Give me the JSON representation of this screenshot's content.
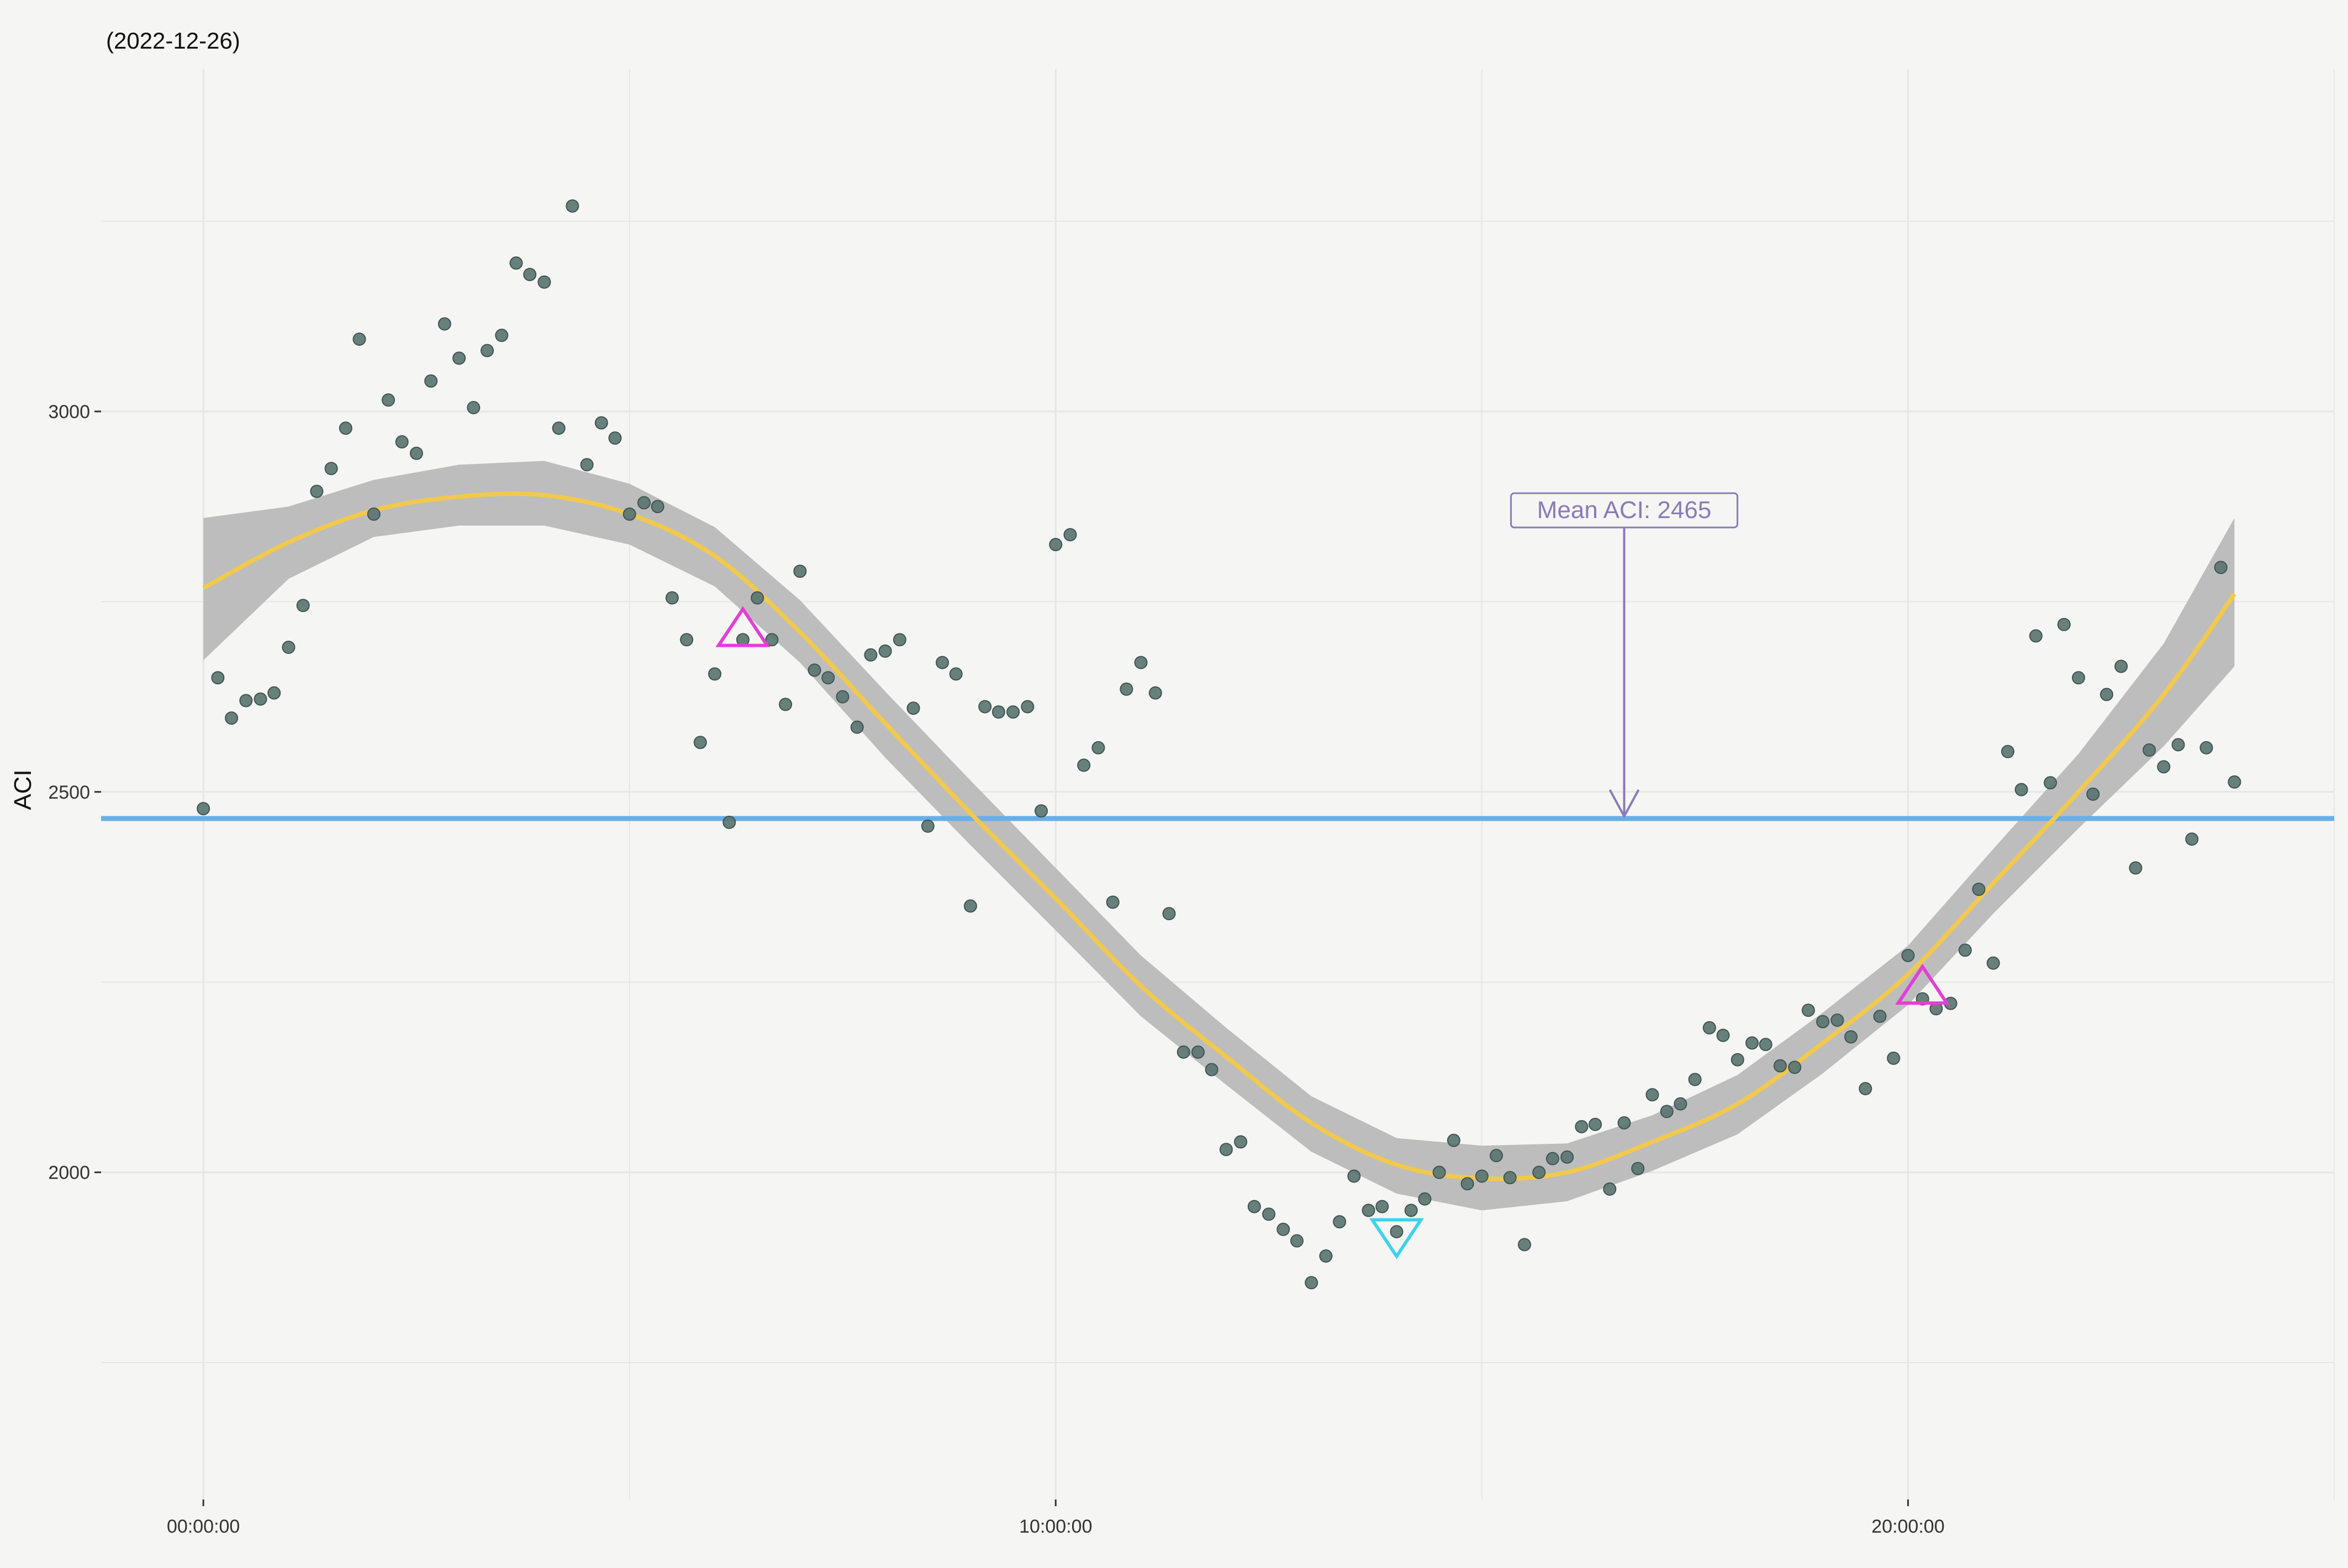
{
  "chart_data": {
    "type": "scatter",
    "title": "(2022-12-26)",
    "xlabel": "",
    "ylabel": "ACI",
    "x_unit": "hours",
    "x_ticks": [
      {
        "value": 0,
        "label": "00:00:00"
      },
      {
        "value": 10,
        "label": "10:00:00"
      },
      {
        "value": 20,
        "label": "20:00:00"
      }
    ],
    "y_ticks": [
      {
        "value": 2000,
        "label": "2000"
      },
      {
        "value": 2500,
        "label": "2500"
      },
      {
        "value": 3000,
        "label": "3000"
      }
    ],
    "xlim": [
      -1.2,
      25.0
    ],
    "ylim": [
      1570,
      3450
    ],
    "grid": true,
    "colors": {
      "points": "#5b7572",
      "smooth_line": "#f2c94c",
      "ribbon": "#bdbdbd",
      "mean_line": "#6aaee8",
      "annotation": "#8a7bb5",
      "peak_marker": "#e23fd6",
      "trough_marker": "#3fd3ea",
      "background": "#f5f5f3",
      "gridline": "#e6e6e3"
    },
    "mean": {
      "value": 2465,
      "label": "Mean ACI:  2465",
      "arrow_x": 16.67,
      "label_y": 2870
    },
    "markers": [
      {
        "type": "peak",
        "x": 6.33,
        "y": 2710
      },
      {
        "type": "trough",
        "x": 14.0,
        "y": 1920
      },
      {
        "type": "peak",
        "x": 20.17,
        "y": 2240
      }
    ],
    "points": [
      {
        "x": 0.0,
        "y": 2478
      },
      {
        "x": 0.17,
        "y": 2650
      },
      {
        "x": 0.33,
        "y": 2597
      },
      {
        "x": 0.5,
        "y": 2620
      },
      {
        "x": 0.67,
        "y": 2622
      },
      {
        "x": 0.83,
        "y": 2630
      },
      {
        "x": 1.0,
        "y": 2690
      },
      {
        "x": 1.17,
        "y": 2745
      },
      {
        "x": 1.33,
        "y": 2895
      },
      {
        "x": 1.5,
        "y": 2925
      },
      {
        "x": 1.67,
        "y": 2978
      },
      {
        "x": 1.83,
        "y": 3095
      },
      {
        "x": 2.0,
        "y": 2865
      },
      {
        "x": 2.17,
        "y": 3015
      },
      {
        "x": 2.33,
        "y": 2960
      },
      {
        "x": 2.5,
        "y": 2945
      },
      {
        "x": 2.67,
        "y": 3040
      },
      {
        "x": 2.83,
        "y": 3115
      },
      {
        "x": 3.0,
        "y": 3070
      },
      {
        "x": 3.17,
        "y": 3005
      },
      {
        "x": 3.33,
        "y": 3080
      },
      {
        "x": 3.5,
        "y": 3100
      },
      {
        "x": 3.67,
        "y": 3195
      },
      {
        "x": 3.83,
        "y": 3180
      },
      {
        "x": 4.0,
        "y": 3170
      },
      {
        "x": 4.17,
        "y": 2978
      },
      {
        "x": 4.33,
        "y": 3270
      },
      {
        "x": 4.5,
        "y": 2930
      },
      {
        "x": 4.67,
        "y": 2985
      },
      {
        "x": 4.83,
        "y": 2965
      },
      {
        "x": 5.0,
        "y": 2865
      },
      {
        "x": 5.17,
        "y": 2880
      },
      {
        "x": 5.33,
        "y": 2875
      },
      {
        "x": 5.5,
        "y": 2755
      },
      {
        "x": 5.67,
        "y": 2700
      },
      {
        "x": 5.83,
        "y": 2565
      },
      {
        "x": 6.0,
        "y": 2655
      },
      {
        "x": 6.17,
        "y": 2460
      },
      {
        "x": 6.33,
        "y": 2700
      },
      {
        "x": 6.5,
        "y": 2755
      },
      {
        "x": 6.67,
        "y": 2700
      },
      {
        "x": 6.83,
        "y": 2615
      },
      {
        "x": 7.0,
        "y": 2790
      },
      {
        "x": 7.17,
        "y": 2660
      },
      {
        "x": 7.33,
        "y": 2650
      },
      {
        "x": 7.5,
        "y": 2625
      },
      {
        "x": 7.67,
        "y": 2585
      },
      {
        "x": 7.83,
        "y": 2680
      },
      {
        "x": 8.0,
        "y": 2685
      },
      {
        "x": 8.17,
        "y": 2700
      },
      {
        "x": 8.33,
        "y": 2610
      },
      {
        "x": 8.5,
        "y": 2455
      },
      {
        "x": 8.67,
        "y": 2670
      },
      {
        "x": 8.83,
        "y": 2655
      },
      {
        "x": 9.0,
        "y": 2350
      },
      {
        "x": 9.17,
        "y": 2612
      },
      {
        "x": 9.33,
        "y": 2605
      },
      {
        "x": 9.5,
        "y": 2605
      },
      {
        "x": 9.67,
        "y": 2612
      },
      {
        "x": 9.83,
        "y": 2475
      },
      {
        "x": 10.0,
        "y": 2825
      },
      {
        "x": 10.17,
        "y": 2838
      },
      {
        "x": 10.33,
        "y": 2535
      },
      {
        "x": 10.5,
        "y": 2558
      },
      {
        "x": 10.67,
        "y": 2355
      },
      {
        "x": 10.83,
        "y": 2635
      },
      {
        "x": 11.0,
        "y": 2670
      },
      {
        "x": 11.17,
        "y": 2630
      },
      {
        "x": 11.33,
        "y": 2340
      },
      {
        "x": 11.5,
        "y": 2158
      },
      {
        "x": 11.67,
        "y": 2158
      },
      {
        "x": 11.83,
        "y": 2135
      },
      {
        "x": 12.0,
        "y": 2030
      },
      {
        "x": 12.17,
        "y": 2040
      },
      {
        "x": 12.33,
        "y": 1955
      },
      {
        "x": 12.5,
        "y": 1945
      },
      {
        "x": 12.67,
        "y": 1925
      },
      {
        "x": 12.83,
        "y": 1910
      },
      {
        "x": 13.0,
        "y": 1855
      },
      {
        "x": 13.17,
        "y": 1890
      },
      {
        "x": 13.33,
        "y": 1935
      },
      {
        "x": 13.5,
        "y": 1995
      },
      {
        "x": 13.67,
        "y": 1950
      },
      {
        "x": 13.83,
        "y": 1955
      },
      {
        "x": 14.0,
        "y": 1922
      },
      {
        "x": 14.17,
        "y": 1950
      },
      {
        "x": 14.33,
        "y": 1965
      },
      {
        "x": 14.5,
        "y": 2000
      },
      {
        "x": 14.67,
        "y": 2042
      },
      {
        "x": 14.83,
        "y": 1985
      },
      {
        "x": 15.0,
        "y": 1995
      },
      {
        "x": 15.17,
        "y": 2022
      },
      {
        "x": 15.33,
        "y": 1993
      },
      {
        "x": 15.5,
        "y": 1905
      },
      {
        "x": 15.67,
        "y": 2000
      },
      {
        "x": 15.83,
        "y": 2018
      },
      {
        "x": 16.0,
        "y": 2020
      },
      {
        "x": 16.17,
        "y": 2060
      },
      {
        "x": 16.33,
        "y": 2063
      },
      {
        "x": 16.5,
        "y": 1978
      },
      {
        "x": 16.67,
        "y": 2065
      },
      {
        "x": 16.83,
        "y": 2005
      },
      {
        "x": 17.0,
        "y": 2102
      },
      {
        "x": 17.17,
        "y": 2080
      },
      {
        "x": 17.33,
        "y": 2090
      },
      {
        "x": 17.5,
        "y": 2122
      },
      {
        "x": 17.67,
        "y": 2190
      },
      {
        "x": 17.83,
        "y": 2180
      },
      {
        "x": 18.0,
        "y": 2148
      },
      {
        "x": 18.17,
        "y": 2170
      },
      {
        "x": 18.33,
        "y": 2168
      },
      {
        "x": 18.5,
        "y": 2140
      },
      {
        "x": 18.67,
        "y": 2138
      },
      {
        "x": 18.83,
        "y": 2213
      },
      {
        "x": 19.0,
        "y": 2198
      },
      {
        "x": 19.17,
        "y": 2200
      },
      {
        "x": 19.33,
        "y": 2178
      },
      {
        "x": 19.5,
        "y": 2110
      },
      {
        "x": 19.67,
        "y": 2205
      },
      {
        "x": 19.83,
        "y": 2150
      },
      {
        "x": 20.0,
        "y": 2285
      },
      {
        "x": 20.17,
        "y": 2228
      },
      {
        "x": 20.33,
        "y": 2215
      },
      {
        "x": 20.5,
        "y": 2222
      },
      {
        "x": 20.67,
        "y": 2292
      },
      {
        "x": 20.83,
        "y": 2372
      },
      {
        "x": 21.0,
        "y": 2275
      },
      {
        "x": 21.17,
        "y": 2553
      },
      {
        "x": 21.33,
        "y": 2503
      },
      {
        "x": 21.5,
        "y": 2705
      },
      {
        "x": 21.67,
        "y": 2512
      },
      {
        "x": 21.83,
        "y": 2720
      },
      {
        "x": 22.0,
        "y": 2650
      },
      {
        "x": 22.17,
        "y": 2497
      },
      {
        "x": 22.33,
        "y": 2628
      },
      {
        "x": 22.5,
        "y": 2665
      },
      {
        "x": 22.67,
        "y": 2400
      },
      {
        "x": 22.83,
        "y": 2555
      },
      {
        "x": 23.0,
        "y": 2533
      },
      {
        "x": 23.17,
        "y": 2562
      },
      {
        "x": 23.33,
        "y": 2438
      },
      {
        "x": 23.5,
        "y": 2558
      },
      {
        "x": 23.67,
        "y": 2795
      },
      {
        "x": 23.83,
        "y": 2513
      }
    ],
    "smooth": [
      {
        "x": 0,
        "y": 2768,
        "lo": 2673,
        "hi": 2860
      },
      {
        "x": 1,
        "y": 2828,
        "lo": 2780,
        "hi": 2875
      },
      {
        "x": 2,
        "y": 2870,
        "lo": 2835,
        "hi": 2910
      },
      {
        "x": 3,
        "y": 2888,
        "lo": 2850,
        "hi": 2930
      },
      {
        "x": 4,
        "y": 2890,
        "lo": 2850,
        "hi": 2935
      },
      {
        "x": 5,
        "y": 2865,
        "lo": 2825,
        "hi": 2905
      },
      {
        "x": 6,
        "y": 2810,
        "lo": 2770,
        "hi": 2848
      },
      {
        "x": 7,
        "y": 2710,
        "lo": 2670,
        "hi": 2752
      },
      {
        "x": 8,
        "y": 2590,
        "lo": 2545,
        "hi": 2632
      },
      {
        "x": 9,
        "y": 2472,
        "lo": 2430,
        "hi": 2515
      },
      {
        "x": 10,
        "y": 2360,
        "lo": 2318,
        "hi": 2400
      },
      {
        "x": 11,
        "y": 2245,
        "lo": 2205,
        "hi": 2285
      },
      {
        "x": 12,
        "y": 2152,
        "lo": 2115,
        "hi": 2190
      },
      {
        "x": 13,
        "y": 2065,
        "lo": 2027,
        "hi": 2100
      },
      {
        "x": 14,
        "y": 2010,
        "lo": 1972,
        "hi": 2045
      },
      {
        "x": 15,
        "y": 1992,
        "lo": 1950,
        "hi": 2035
      },
      {
        "x": 16,
        "y": 2000,
        "lo": 1962,
        "hi": 2038
      },
      {
        "x": 17,
        "y": 2040,
        "lo": 2002,
        "hi": 2075
      },
      {
        "x": 18,
        "y": 2090,
        "lo": 2050,
        "hi": 2128
      },
      {
        "x": 19,
        "y": 2170,
        "lo": 2130,
        "hi": 2210
      },
      {
        "x": 20,
        "y": 2260,
        "lo": 2220,
        "hi": 2298
      },
      {
        "x": 21,
        "y": 2380,
        "lo": 2340,
        "hi": 2425
      },
      {
        "x": 22,
        "y": 2500,
        "lo": 2452,
        "hi": 2550
      },
      {
        "x": 23,
        "y": 2628,
        "lo": 2560,
        "hi": 2695
      },
      {
        "x": 23.83,
        "y": 2760,
        "lo": 2665,
        "hi": 2860
      }
    ]
  }
}
